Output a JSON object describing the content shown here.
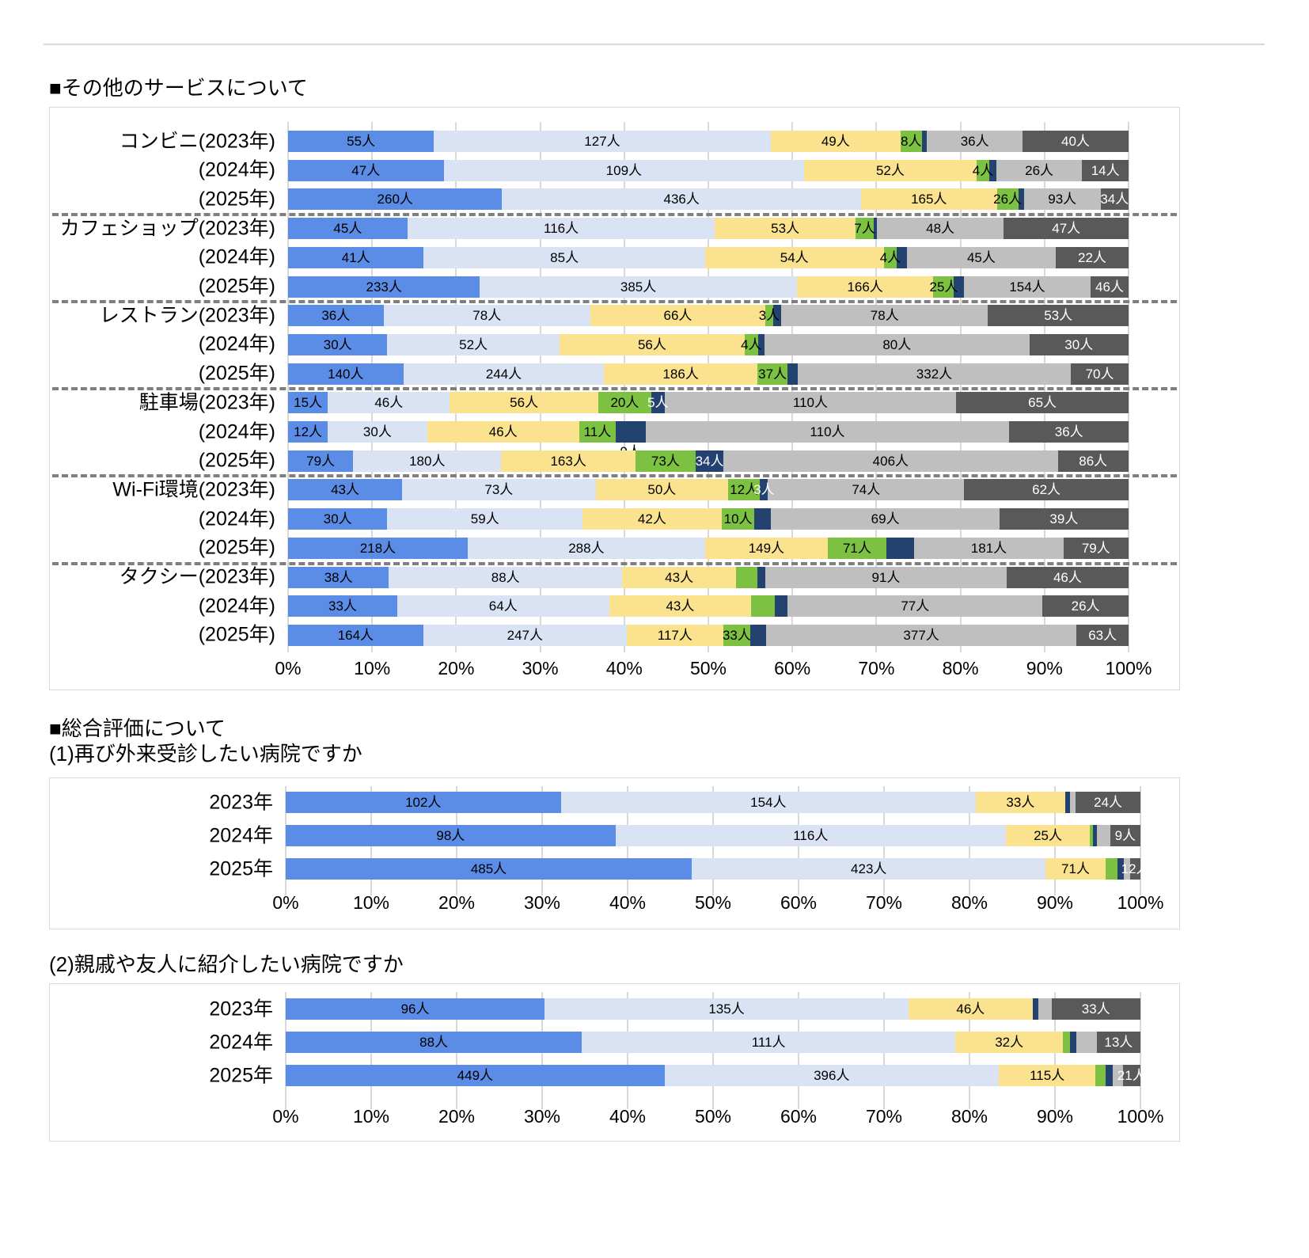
{
  "titles": {
    "section1": "■その他のサービスについて",
    "section2": "■総合評価について",
    "section2_sub": "(1)再び外来受診したい病院ですか",
    "section3_sub": "(2)親戚や友人に紹介したい病院ですか"
  },
  "unit": "人",
  "series_colors": [
    "#5b8de6",
    "#dae3f4",
    "#fbe28e",
    "#7cc142",
    "#24426f",
    "#bfbfbf",
    "#595959"
  ],
  "series_label_colors": [
    "#000000",
    "#000000",
    "#000000",
    "#000000",
    "#ffffff",
    "#000000",
    "#ffffff"
  ],
  "series_color_names": [
    "blue",
    "light-blue",
    "yellow",
    "green",
    "navy",
    "gray",
    "dark-gray"
  ],
  "x_ticks": [
    "0%",
    "10%",
    "20%",
    "30%",
    "40%",
    "50%",
    "60%",
    "70%",
    "80%",
    "90%",
    "100%"
  ],
  "chart_data": [
    {
      "type": "bar",
      "subtype": "stacked-bar-100-horizontal",
      "title": "その他のサービスについて",
      "xlabel": "",
      "ylabel": "",
      "xlim": [
        "0%",
        "100%"
      ],
      "grid": true,
      "legend": "none",
      "separators_after": [
        2,
        5,
        8,
        11,
        14
      ],
      "rows": [
        {
          "label": "コンビニ(2023年)",
          "values": [
            55,
            127,
            49,
            8,
            2,
            36,
            40
          ],
          "seg_labels": [
            "55人",
            "127人",
            "49人",
            "8人",
            "",
            "36人",
            "40人"
          ]
        },
        {
          "label": "(2024年)",
          "values": [
            47,
            109,
            52,
            4,
            2,
            26,
            14
          ],
          "seg_labels": [
            "47人",
            "109人",
            "52人",
            "4人",
            "",
            "26人",
            "14人"
          ]
        },
        {
          "label": "(2025年)",
          "values": [
            260,
            436,
            165,
            26,
            7,
            93,
            34
          ],
          "seg_labels": [
            "260人",
            "436人",
            "165人",
            "26人",
            "",
            "93人",
            "34人"
          ]
        },
        {
          "label": "カフェショップ(2023年)",
          "values": [
            45,
            116,
            53,
            7,
            1,
            48,
            47
          ],
          "seg_labels": [
            "45人",
            "116人",
            "53人",
            "7人",
            "",
            "48人",
            "47人"
          ]
        },
        {
          "label": "(2024年)",
          "values": [
            41,
            85,
            54,
            4,
            3,
            45,
            22
          ],
          "seg_labels": [
            "41人",
            "85人",
            "54人",
            "4人",
            "",
            "45人",
            "22人"
          ]
        },
        {
          "label": "(2025年)",
          "values": [
            233,
            385,
            166,
            25,
            12,
            154,
            46
          ],
          "seg_labels": [
            "233人",
            "385人",
            "166人",
            "25人",
            "",
            "154人",
            "46人"
          ]
        },
        {
          "label": "レストラン(2023年)",
          "values": [
            36,
            78,
            66,
            3,
            3,
            78,
            53
          ],
          "seg_labels": [
            "36人",
            "78人",
            "66人",
            "3人",
            "",
            "78人",
            "53人"
          ]
        },
        {
          "label": "(2024年)",
          "values": [
            30,
            52,
            56,
            4,
            2,
            80,
            30
          ],
          "seg_labels": [
            "30人",
            "52人",
            "56人",
            "4人",
            "",
            "80人",
            "30人"
          ]
        },
        {
          "label": "(2025年)",
          "values": [
            140,
            244,
            186,
            37,
            12,
            332,
            70
          ],
          "seg_labels": [
            "140人",
            "244人",
            "186人",
            "37人",
            "",
            "332人",
            "70人"
          ]
        },
        {
          "label": "駐車場(2023年)",
          "values": [
            15,
            46,
            56,
            20,
            5,
            110,
            65
          ],
          "seg_labels": [
            "15人",
            "46人",
            "56人",
            "20人",
            "5人",
            "110人",
            "65人"
          ]
        },
        {
          "label": "(2024年)",
          "values": [
            12,
            30,
            46,
            11,
            9,
            110,
            36
          ],
          "seg_labels": [
            "12人",
            "30人",
            "46人",
            "11人",
            "",
            "110人",
            "36人"
          ],
          "callout": {
            "index": 4,
            "text": "9人"
          }
        },
        {
          "label": "(2025年)",
          "values": [
            79,
            180,
            163,
            73,
            34,
            406,
            86
          ],
          "seg_labels": [
            "79人",
            "180人",
            "163人",
            "73人",
            "34人",
            "406人",
            "86人"
          ]
        },
        {
          "label": "Wi-Fi環境(2023年)",
          "values": [
            43,
            73,
            50,
            12,
            3,
            74,
            62
          ],
          "seg_labels": [
            "43人",
            "73人",
            "50人",
            "12人",
            "3人",
            "74人",
            "62人"
          ]
        },
        {
          "label": "(2024年)",
          "values": [
            30,
            59,
            42,
            10,
            5,
            69,
            39
          ],
          "seg_labels": [
            "30人",
            "59人",
            "42人",
            "10人",
            "",
            "69人",
            "39人"
          ]
        },
        {
          "label": "(2025年)",
          "values": [
            218,
            288,
            149,
            71,
            34,
            181,
            79
          ],
          "seg_labels": [
            "218人",
            "288人",
            "149人",
            "71人",
            "",
            "181人",
            "79人"
          ]
        },
        {
          "label": "タクシー(2023年)",
          "values": [
            38,
            88,
            43,
            8,
            3,
            91,
            46
          ],
          "seg_labels": [
            "38人",
            "88人",
            "43人",
            "",
            "",
            "91人",
            "46人"
          ]
        },
        {
          "label": "(2024年)",
          "values": [
            33,
            64,
            43,
            7,
            4,
            77,
            26
          ],
          "seg_labels": [
            "33人",
            "64人",
            "43人",
            "",
            "",
            "77人",
            "26人"
          ]
        },
        {
          "label": "(2025年)",
          "values": [
            164,
            247,
            117,
            33,
            19,
            377,
            63
          ],
          "seg_labels": [
            "164人",
            "247人",
            "117人",
            "33人",
            "",
            "377人",
            "63人"
          ]
        }
      ]
    },
    {
      "type": "bar",
      "subtype": "stacked-bar-100-horizontal",
      "title": "(1)再び外来受診したい病院ですか",
      "xlabel": "",
      "ylabel": "",
      "xlim": [
        "0%",
        "100%"
      ],
      "grid": true,
      "legend": "none",
      "separators_after": [],
      "rows": [
        {
          "label": "2023年",
          "values": [
            102,
            154,
            33,
            0,
            2,
            2,
            24
          ],
          "seg_labels": [
            "102人",
            "154人",
            "33人",
            "",
            "",
            "",
            "24人"
          ]
        },
        {
          "label": "2024年",
          "values": [
            98,
            116,
            25,
            1,
            1,
            4,
            9
          ],
          "seg_labels": [
            "98人",
            "116人",
            "25人",
            "",
            "",
            "",
            "9人"
          ]
        },
        {
          "label": "2025年",
          "values": [
            485,
            423,
            71,
            15,
            7,
            8,
            12
          ],
          "seg_labels": [
            "485人",
            "423人",
            "71人",
            "",
            "",
            "",
            "12人"
          ]
        }
      ]
    },
    {
      "type": "bar",
      "subtype": "stacked-bar-100-horizontal",
      "title": "(2)親戚や友人に紹介したい病院ですか",
      "xlabel": "",
      "ylabel": "",
      "xlim": [
        "0%",
        "100%"
      ],
      "grid": true,
      "legend": "none",
      "separators_after": [],
      "rows": [
        {
          "label": "2023年",
          "values": [
            96,
            135,
            46,
            0,
            2,
            5,
            33
          ],
          "seg_labels": [
            "96人",
            "135人",
            "46人",
            "",
            "",
            "",
            "33人"
          ]
        },
        {
          "label": "2024年",
          "values": [
            88,
            111,
            32,
            2,
            2,
            6,
            13
          ],
          "seg_labels": [
            "88人",
            "111人",
            "32人",
            "",
            "",
            "",
            "13人"
          ]
        },
        {
          "label": "2025年",
          "values": [
            449,
            396,
            115,
            12,
            8,
            12,
            21
          ],
          "seg_labels": [
            "449人",
            "396人",
            "115人",
            "",
            "",
            "",
            "21人"
          ]
        }
      ]
    }
  ]
}
